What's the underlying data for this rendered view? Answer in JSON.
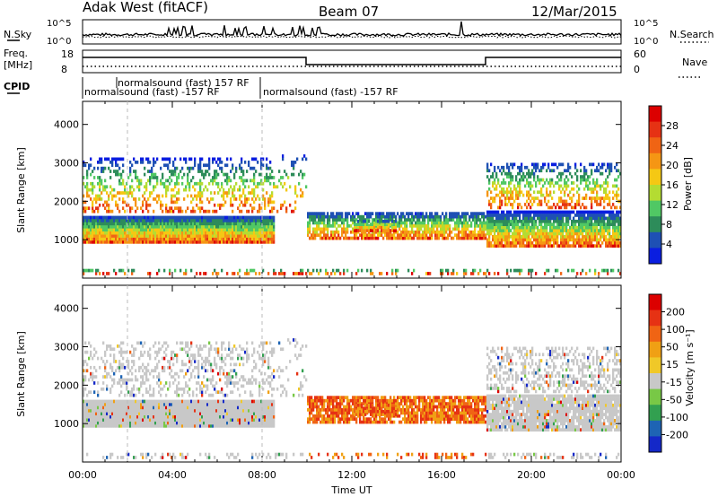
{
  "header": {
    "station": "Adak West (fitACF)",
    "beam": "Beam 07",
    "date": "12/Mar/2015"
  },
  "top_panels": {
    "nsky_label": "N.Sky",
    "nsearch_label": "N.Search",
    "count_ticks": [
      "10^5",
      "10^0"
    ],
    "freq_label": "Freq.",
    "freq_unit": "[MHz]",
    "freq_ticks": [
      "18",
      "8"
    ],
    "nave_label": "Nave",
    "nave_ticks": [
      "60",
      "0"
    ],
    "cpid_label": "CPID",
    "cpid_segments": [
      "normalsound (fast) -157 RF",
      "normalsound (fast) 157 RF",
      "normalsound (fast) -157 RF"
    ]
  },
  "chart_data": [
    {
      "type": "heatmap",
      "title": "",
      "xlabel": "Time UT",
      "ylabel": "Slant Range [km]",
      "x_ticks": [
        "00:00",
        "04:00",
        "08:00",
        "12:00",
        "16:00",
        "20:00",
        "00:00"
      ],
      "y_ticks": [
        "1000",
        "2000",
        "3000",
        "4000"
      ],
      "ylim": [
        0,
        4600
      ],
      "colorbar_label": "Power [dB]",
      "colorbar_ticks": [
        "4",
        "8",
        "12",
        "16",
        "20",
        "24",
        "28"
      ],
      "colorbar_colors": [
        "#0a1ee0",
        "#1e50b4",
        "#2d8c5a",
        "#50c864",
        "#b4dc32",
        "#f5c814",
        "#f59614",
        "#f06414",
        "#e63214",
        "#dc0000"
      ]
    },
    {
      "type": "heatmap",
      "title": "",
      "xlabel": "Time UT",
      "ylabel": "Slant Range [km]",
      "x_ticks": [
        "00:00",
        "04:00",
        "08:00",
        "12:00",
        "16:00",
        "20:00",
        "00:00"
      ],
      "y_ticks": [
        "1000",
        "2000",
        "3000",
        "4000"
      ],
      "ylim": [
        0,
        4600
      ],
      "colorbar_label": "Velocity [m s⁻¹]",
      "colorbar_ticks": [
        "200",
        "100",
        "50",
        "15",
        "-15",
        "-50",
        "-100",
        "-200"
      ],
      "colorbar_colors": [
        "#1428c8",
        "#1e64b4",
        "#32a050",
        "#78c846",
        "#c8c8c8",
        "#f0c828",
        "#f0a014",
        "#f06414",
        "#e63214",
        "#dc0000"
      ]
    }
  ]
}
